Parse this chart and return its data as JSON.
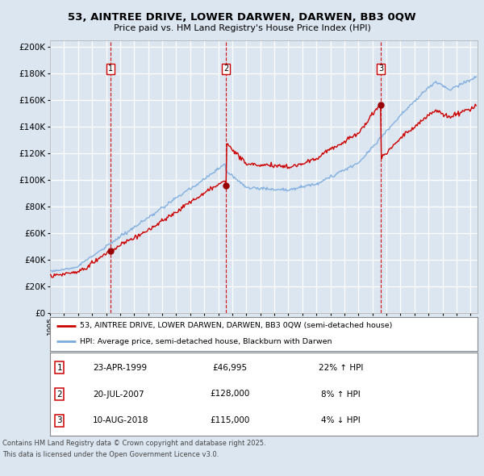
{
  "title": "53, AINTREE DRIVE, LOWER DARWEN, DARWEN, BB3 0QW",
  "subtitle": "Price paid vs. HM Land Registry's House Price Index (HPI)",
  "bg_color": "#dce6f1",
  "plot_bg_color": "#dce6f1",
  "grid_color": "#ffffff",
  "red_line_color": "#cc0000",
  "blue_line_color": "#7aaadd",
  "dot_color": "#990000",
  "purchases": [
    {
      "date_num": 1999.31,
      "price": 46995,
      "label": "1",
      "date_str": "23-APR-1999"
    },
    {
      "date_num": 2007.55,
      "price": 128000,
      "label": "2",
      "date_str": "20-JUL-2007"
    },
    {
      "date_num": 2018.61,
      "price": 115000,
      "label": "3",
      "date_str": "10-AUG-2018"
    }
  ],
  "xmin": 1995,
  "xmax": 2025.5,
  "ymin": 0,
  "ymax": 205000,
  "yticks": [
    0,
    20000,
    40000,
    60000,
    80000,
    100000,
    120000,
    140000,
    160000,
    180000,
    200000
  ],
  "legend_line1": "53, AINTREE DRIVE, LOWER DARWEN, DARWEN, BB3 0QW (semi-detached house)",
  "legend_line2": "HPI: Average price, semi-detached house, Blackburn with Darwen",
  "table_rows": [
    [
      "1",
      "23-APR-1999",
      "£46,995",
      "22% ↑ HPI"
    ],
    [
      "2",
      "20-JUL-2007",
      "£128,000",
      "8% ↑ HPI"
    ],
    [
      "3",
      "10-AUG-2018",
      "£115,000",
      "4% ↓ HPI"
    ]
  ],
  "footer": "Contains HM Land Registry data © Crown copyright and database right 2025.\nThis data is licensed under the Open Government Licence v3.0."
}
